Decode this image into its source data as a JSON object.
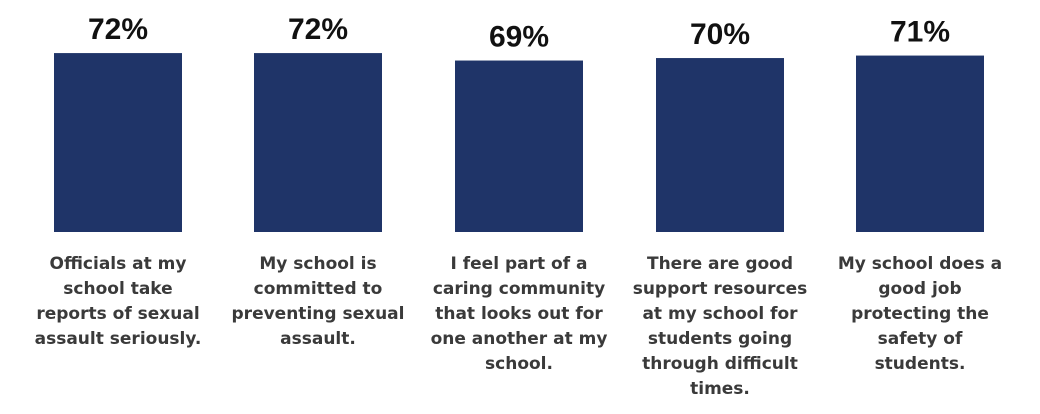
{
  "chart_data": {
    "type": "bar",
    "categories": [
      "Officials at my school take reports of sexual assault seriously.",
      "My school is committed to preventing sexual assault.",
      "I feel part of a caring community that looks out for one another at my school.",
      "There are good support resources at my school for students going through difficult times.",
      "My school does a good job protecting the safety of students."
    ],
    "values": [
      72,
      72,
      69,
      70,
      71
    ],
    "value_labels": [
      "72%",
      "72%",
      "69%",
      "70%",
      "71%"
    ],
    "bar_color": "#1f3468",
    "ylim": [
      0,
      100
    ],
    "grid": false,
    "legend": "none"
  }
}
